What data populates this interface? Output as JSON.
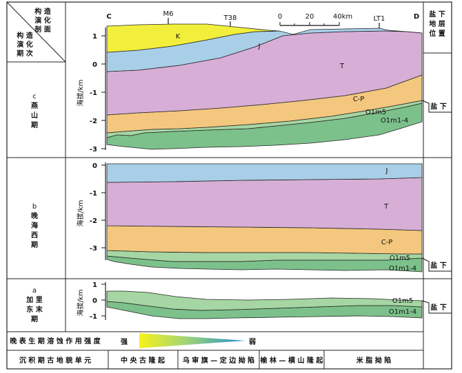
{
  "header": {
    "corner_top_lines": [
      "构 造",
      "演 化",
      "剖 面"
    ],
    "corner_bottom_lines": [
      "构 造",
      "演 化",
      "期 次"
    ],
    "right_header_lines": [
      "盐 下",
      "地 层",
      "位 置"
    ],
    "section_endpoints": [
      "C",
      "D"
    ],
    "wells": [
      "M6",
      "T38",
      "LT1"
    ],
    "scale": {
      "ticks": [
        "0",
        "20",
        "40km"
      ]
    }
  },
  "stages": [
    {
      "id": "c",
      "name_lines": [
        "c",
        "燕",
        "山",
        "期"
      ],
      "ylabel": "海拔/km",
      "ticks": [
        "1",
        "0",
        "-1",
        "-2",
        "-3"
      ],
      "layer_labels": [
        "K",
        "J",
        "T",
        "C-P",
        "O1m5",
        "O1m1-4"
      ],
      "salt_marker": "盐 下"
    },
    {
      "id": "b",
      "name_lines": [
        "b",
        "晚",
        "海",
        "西",
        "期"
      ],
      "ylabel": "海拔/km",
      "ticks": [
        "0",
        "-1",
        "-2",
        "-3"
      ],
      "layer_labels": [
        "J",
        "T",
        "C-P",
        "O1m5",
        "O1m1-4"
      ],
      "salt_marker": "盐 下"
    },
    {
      "id": "a",
      "name_lines": [
        "a",
        "加 里",
        "东 末",
        "期"
      ],
      "ylabel": "海拔/km",
      "ticks": [
        "1",
        "0",
        "-1"
      ],
      "layer_labels": [
        "O1m5",
        "O1m1-4"
      ],
      "salt_marker": "盐 下"
    }
  ],
  "dissolution_row": {
    "label": "晚 表 生 期 溶 蚀 作 用 强 度",
    "strong": "强",
    "weak": "弱"
  },
  "units_row": {
    "label": "沉 积 期 古 地 貌 单 元",
    "units": [
      "中 央 古 隆 起",
      "乌 审 旗 — 定 边 拗 陷",
      "榆 林 — 横 山 隆 起",
      "米 脂 拗 陷"
    ]
  },
  "colors": {
    "K": "#f2ef3c",
    "J": "#a9cfe8",
    "T": "#d7aed6",
    "C-P": "#f3c77e",
    "O1m5": "#a6d6a3",
    "O1m1-4": "#7cc18b",
    "gradient_strong": "#f7f21a",
    "gradient_weak": "#1f8fcf"
  }
}
